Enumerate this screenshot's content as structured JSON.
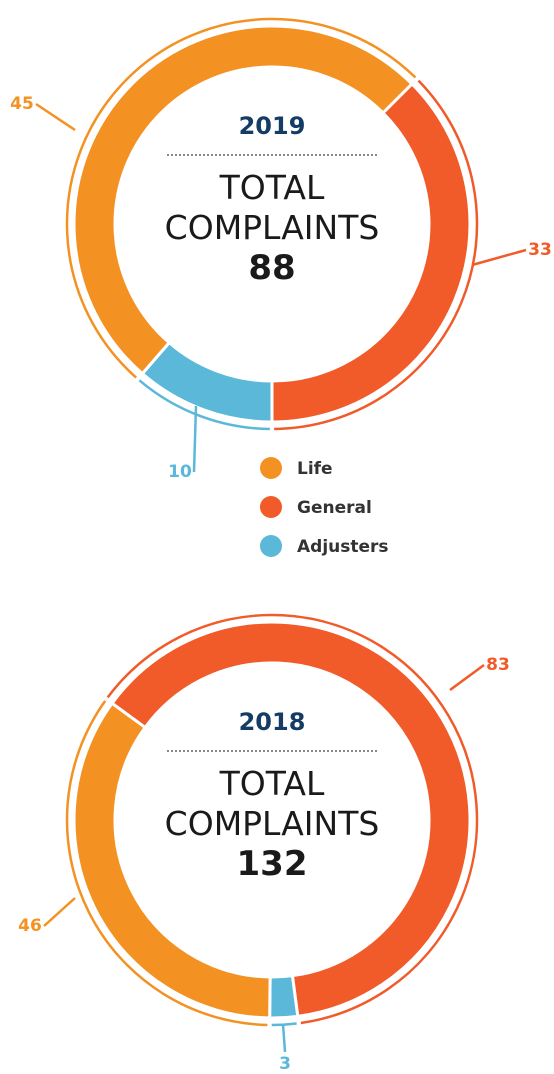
{
  "chart_data": [
    {
      "type": "pie",
      "title": "2019",
      "subtitle": "TOTAL COMPLAINTS",
      "total": 88,
      "categories": [
        "Life",
        "General",
        "Adjusters"
      ],
      "values": [
        45,
        33,
        10
      ],
      "colors": [
        "#f39222",
        "#f15a29",
        "#5bb8d8"
      ],
      "legend": true
    },
    {
      "type": "pie",
      "title": "2018",
      "subtitle": "TOTAL COMPLAINTS",
      "total": 132,
      "categories": [
        "Life",
        "General",
        "Adjusters"
      ],
      "values": [
        46,
        83,
        3
      ],
      "colors": [
        "#f39222",
        "#f15a29",
        "#5bb8d8"
      ]
    }
  ]
}
